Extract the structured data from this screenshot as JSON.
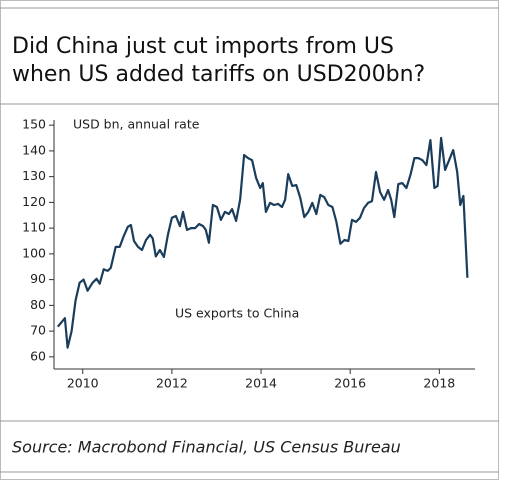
{
  "chart_data": {
    "type": "line",
    "title": [
      "Did China just cut imports from US",
      "when US added tariffs on USD200bn?"
    ],
    "y_axis_label": "USD bn, annual rate",
    "source": "Source: Macrobond Financial, US Census Bureau",
    "x": [
      2009.44,
      2009.6,
      2009.66,
      2009.75,
      2009.84,
      2009.93,
      2010.02,
      2010.11,
      2010.22,
      2010.31,
      2010.38,
      2010.47,
      2010.56,
      2010.63,
      2010.74,
      2010.83,
      2010.92,
      2011.01,
      2011.08,
      2011.15,
      2011.24,
      2011.33,
      2011.42,
      2011.51,
      2011.57,
      2011.64,
      2011.73,
      2011.82,
      2011.91,
      2012.0,
      2012.09,
      2012.18,
      2012.25,
      2012.34,
      2012.43,
      2012.52,
      2012.61,
      2012.7,
      2012.76,
      2012.83,
      2012.92,
      2013.01,
      2013.1,
      2013.19,
      2013.28,
      2013.35,
      2013.44,
      2013.53,
      2013.62,
      2013.71,
      2013.8,
      2013.89,
      2013.98,
      2014.04,
      2014.11,
      2014.2,
      2014.29,
      2014.38,
      2014.47,
      2014.54,
      2014.61,
      2014.7,
      2014.79,
      2014.88,
      2014.97,
      2015.06,
      2015.15,
      2015.24,
      2015.33,
      2015.42,
      2015.51,
      2015.6,
      2015.69,
      2015.78,
      2015.87,
      2015.96,
      2016.04,
      2016.13,
      2016.22,
      2016.31,
      2016.4,
      2016.49,
      2016.58,
      2016.67,
      2016.76,
      2016.85,
      2016.92,
      2016.99,
      2017.08,
      2017.17,
      2017.26,
      2017.35,
      2017.44,
      2017.53,
      2017.62,
      2017.71,
      2017.8,
      2017.89,
      2017.96,
      2018.04,
      2018.13,
      2018.22,
      2018.31,
      2018.4,
      2018.47,
      2018.54,
      2018.63
    ],
    "series": [
      {
        "name": "US exports to China",
        "color": "#1b3d5c",
        "values": [
          71.7,
          75,
          63.6,
          70,
          82,
          88.8,
          90,
          85.7,
          88.8,
          90.3,
          88.4,
          94,
          93.4,
          94.6,
          102.7,
          102.7,
          107,
          110.5,
          111.2,
          105,
          102.7,
          101.5,
          105.4,
          107.4,
          106,
          99,
          101.5,
          98.8,
          107.4,
          114,
          114.7,
          110.8,
          116.3,
          109.3,
          110,
          110,
          111.6,
          110.8,
          109.3,
          104.3,
          119,
          118.2,
          113.2,
          116.3,
          115.5,
          117.4,
          112.8,
          121,
          138.4,
          137.2,
          136.4,
          129.5,
          125.6,
          127.5,
          116.3,
          119.8,
          119,
          119.4,
          118.2,
          121,
          131,
          126.4,
          126.7,
          121.7,
          114.3,
          116.3,
          119.8,
          115.5,
          122.9,
          122,
          119,
          118.2,
          112.4,
          103.9,
          105.4,
          105,
          113.2,
          112.4,
          114,
          117.8,
          119.8,
          120.5,
          131.8,
          124,
          121,
          124.8,
          121,
          114.3,
          127.1,
          127.5,
          125.6,
          130.6,
          137.2,
          137.2,
          136.4,
          134.5,
          144.2,
          125.6,
          126.4,
          145,
          132.6,
          136.4,
          140.3,
          131.8,
          119,
          122.5,
          90.7
        ]
      }
    ],
    "xlim": [
      2009.4,
      2018.8
    ],
    "xticks": [
      2010,
      2012,
      2014,
      2016,
      2018
    ],
    "ylim": [
      58,
      152
    ],
    "yticks": [
      60,
      70,
      80,
      90,
      100,
      110,
      120,
      130,
      140,
      150
    ]
  }
}
